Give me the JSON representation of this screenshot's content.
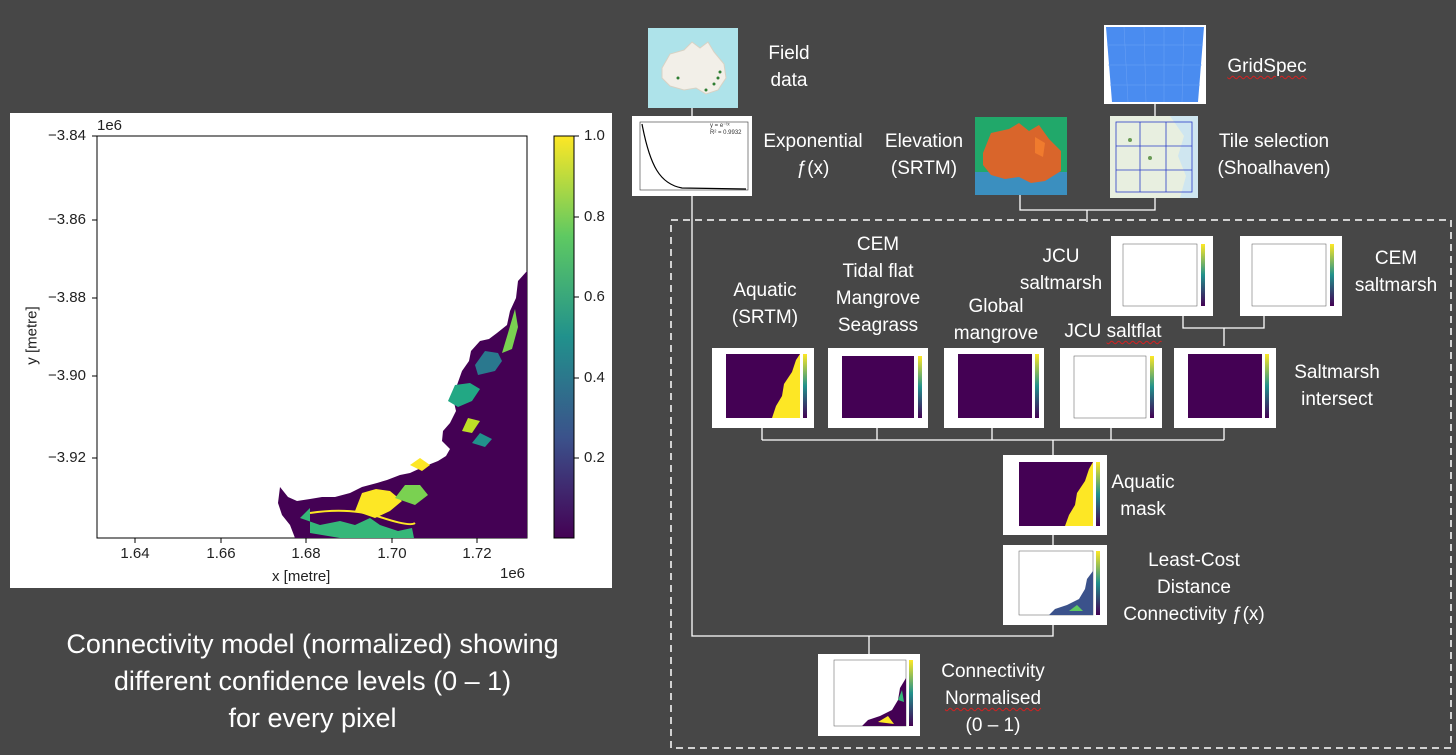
{
  "left_panel": {
    "colorbar": {
      "ticks": [
        "1.0",
        "0.8",
        "0.6",
        "0.4",
        "0.2"
      ]
    },
    "y_ticks": [
      "−3.84",
      "−3.86",
      "−3.88",
      "−3.90",
      "−3.92"
    ],
    "x_ticks": [
      "1.64",
      "1.66",
      "1.68",
      "1.70",
      "1.72"
    ],
    "y_offset": "1e6",
    "x_offset": "1e6",
    "xlabel": "x [metre]",
    "ylabel": "y [metre]",
    "caption": [
      "Connectivity model (normalized) showing",
      "different confidence levels (0 – 1)",
      "for every pixel"
    ]
  },
  "flowchart": {
    "field_data": [
      "Field",
      "data"
    ],
    "exponential": [
      "Exponential",
      "ƒ(x)"
    ],
    "elevation": [
      "Elevation",
      "(SRTM)"
    ],
    "gridspec": "GridSpec",
    "tile_selection": [
      "Tile selection",
      "(Shoalhaven)"
    ],
    "aquatic_srtm": [
      "Aquatic",
      "(SRTM)"
    ],
    "cem_tidal": [
      "CEM",
      "Tidal flat",
      "Mangrove",
      "Seagrass"
    ],
    "global_mangrove": [
      "Global",
      "mangrove"
    ],
    "jcu_saltmarsh": [
      "JCU",
      "saltmarsh"
    ],
    "jcu_saltflat": [
      "JCU ",
      "saltflat"
    ],
    "cem_saltmarsh": [
      "CEM",
      "saltmarsh"
    ],
    "saltmarsh_intersect": [
      "Saltmarsh",
      "intersect"
    ],
    "aquatic_mask": [
      "Aquatic",
      "mask"
    ],
    "least_cost": [
      "Least-Cost",
      "Distance",
      "Connectivity ƒ(x)"
    ],
    "connectivity": [
      "Connectivity",
      "Normalised",
      "(0 – 1)"
    ],
    "exp_equation": "y = e⁻ᵗˣ",
    "exp_r2": "R² = 0.9932"
  },
  "colors": {
    "background": "#474747",
    "viridis_low": "#440154",
    "viridis_high": "#fde725",
    "squiggle": "#d62020"
  }
}
